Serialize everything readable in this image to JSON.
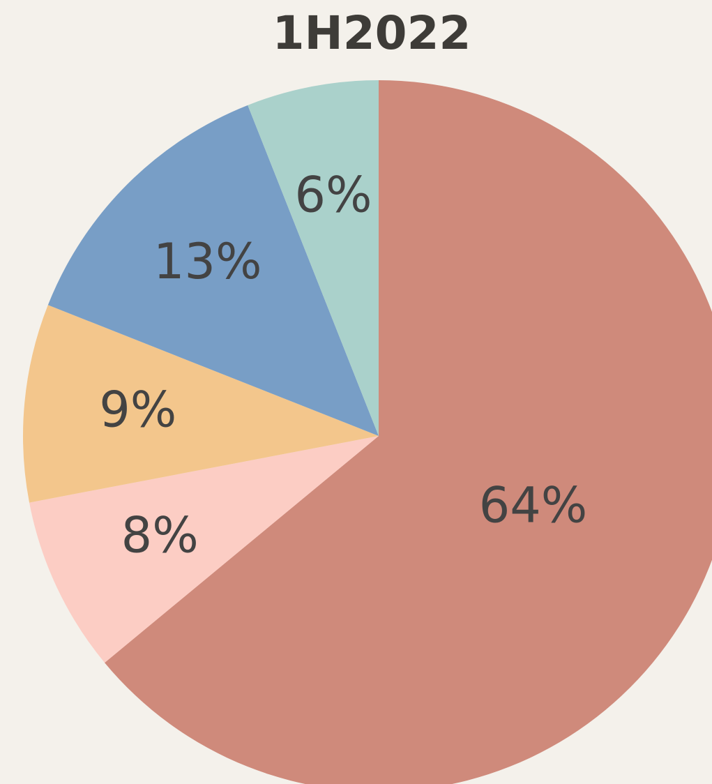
{
  "chart_data": {
    "type": "pie",
    "title": "1H2022",
    "values": [
      64,
      8,
      9,
      13,
      6
    ],
    "value_labels": [
      "64%",
      "8%",
      "9%",
      "13%",
      "6%"
    ],
    "colors": [
      "#cf8a7b",
      "#fccdc4",
      "#f3c68c",
      "#789ec6",
      "#aad1cb"
    ]
  }
}
